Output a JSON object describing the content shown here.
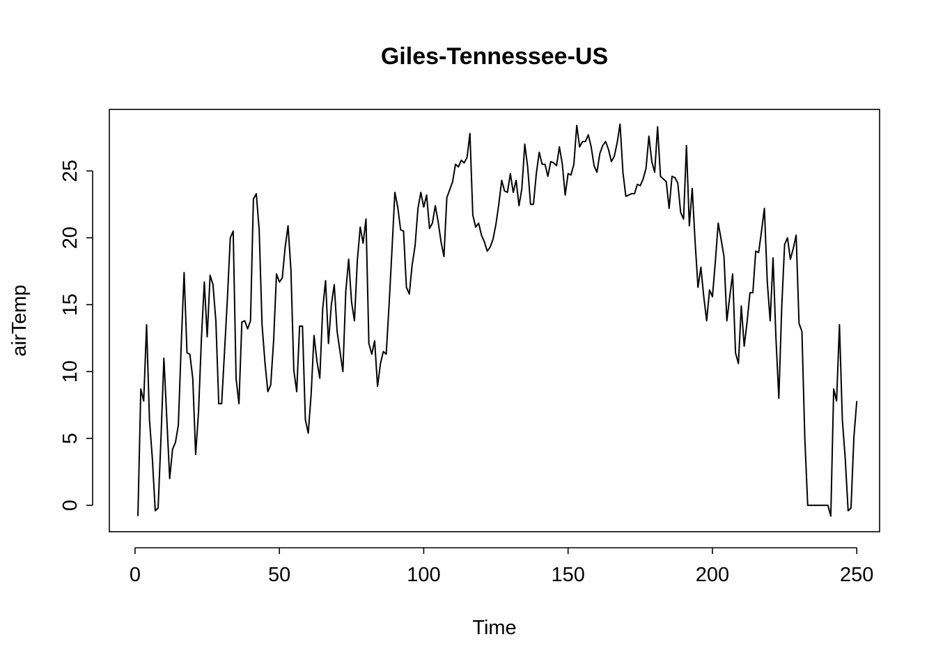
{
  "chart_data": {
    "type": "line",
    "title": "Giles-Tennessee-US",
    "xlabel": "Time",
    "ylabel": "airTemp",
    "xlim": [
      -8.9,
      257.9
    ],
    "ylim": [
      -1.97,
      29.6
    ],
    "xticks": [
      0,
      50,
      100,
      150,
      200,
      250
    ],
    "yticks": [
      0,
      5,
      10,
      15,
      20,
      25
    ],
    "grid": false,
    "series": [
      {
        "values": [
          -0.8,
          8.7,
          7.8,
          13.5,
          6.4,
          3.5,
          -0.4,
          -0.2,
          5.1,
          11.0,
          6.5,
          2.0,
          4.2,
          4.7,
          6.0,
          12.0,
          17.4,
          11.4,
          11.3,
          9.5,
          3.8,
          7.0,
          12.5,
          16.7,
          12.6,
          17.2,
          16.5,
          13.8,
          7.6,
          7.6,
          11.5,
          15.5,
          20.0,
          20.5,
          9.5,
          7.6,
          13.7,
          13.8,
          13.2,
          13.8,
          22.9,
          23.3,
          20.6,
          13.5,
          10.7,
          8.5,
          9.0,
          12.3,
          17.3,
          16.7,
          17.0,
          19.3,
          20.9,
          17.6,
          10.1,
          8.5,
          13.4,
          13.4,
          6.4,
          5.4,
          8.3,
          12.7,
          10.8,
          9.5,
          14.7,
          16.8,
          12.1,
          15.0,
          16.5,
          13.0,
          11.5,
          10.0,
          16.0,
          18.4,
          15.2,
          13.8,
          18.3,
          20.8,
          19.6,
          21.4,
          12.1,
          11.3,
          12.3,
          8.9,
          10.6,
          11.5,
          11.3,
          15.0,
          19.1,
          23.4,
          22.3,
          20.6,
          20.5,
          16.3,
          15.8,
          18.0,
          19.4,
          22.2,
          23.4,
          22.3,
          23.2,
          20.7,
          21.1,
          22.4,
          21.2,
          19.7,
          18.6,
          23.0,
          23.6,
          24.2,
          25.5,
          25.3,
          25.8,
          25.6,
          26.0,
          27.8,
          21.7,
          20.8,
          21.1,
          20.2,
          19.7,
          19.0,
          19.3,
          19.9,
          21.0,
          22.5,
          24.3,
          23.5,
          23.4,
          24.8,
          23.4,
          24.3,
          22.4,
          23.7,
          27.0,
          25.3,
          22.5,
          22.5,
          24.8,
          26.4,
          25.5,
          25.5,
          24.6,
          25.7,
          25.6,
          25.4,
          26.8,
          25.5,
          23.2,
          24.8,
          24.7,
          25.5,
          28.4,
          26.8,
          27.2,
          27.2,
          27.7,
          26.8,
          25.4,
          24.9,
          26.3,
          26.9,
          27.2,
          26.6,
          25.7,
          26.1,
          27.1,
          28.5,
          24.9,
          23.1,
          23.2,
          23.3,
          23.3,
          24.0,
          23.9,
          24.4,
          25.2,
          27.6,
          25.7,
          24.9,
          28.3,
          24.6,
          24.4,
          24.2,
          22.2,
          24.6,
          24.5,
          24.1,
          21.9,
          21.4,
          26.9,
          20.9,
          23.7,
          19.7,
          16.3,
          17.8,
          15.6,
          13.8,
          16.1,
          15.6,
          18.2,
          21.1,
          19.9,
          18.6,
          13.8,
          15.6,
          17.3,
          11.4,
          10.6,
          14.9,
          11.9,
          13.7,
          15.9,
          15.9,
          19.0,
          18.9,
          20.5,
          22.2,
          16.7,
          13.8,
          18.5,
          12.5,
          8.0,
          14.8,
          19.5,
          20.0,
          18.4,
          19.2,
          20.2,
          13.6,
          13.0,
          5.0,
          0.0,
          0.0,
          0.0,
          0.0,
          0.0,
          0.0,
          0.0,
          0.0,
          -0.8,
          8.7,
          7.8,
          13.5,
          6.4,
          3.5,
          -0.4,
          -0.2,
          5.1,
          7.8
        ]
      }
    ]
  }
}
